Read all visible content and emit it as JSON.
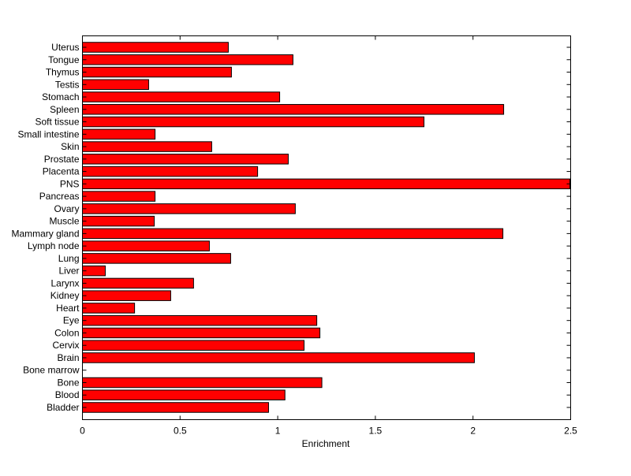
{
  "chart_data": {
    "type": "bar",
    "orientation": "horizontal",
    "title": "",
    "xlabel": "Enrichment",
    "ylabel": "",
    "xlim": [
      0,
      2.5
    ],
    "xticks": [
      "0",
      "0.5",
      "1",
      "1.5",
      "2",
      "2.5"
    ],
    "grid": false,
    "bar_color": "#ff0000",
    "categories": [
      "Bladder",
      "Blood",
      "Bone",
      "Bone marrow",
      "Brain",
      "Cervix",
      "Colon",
      "Eye",
      "Heart",
      "Kidney",
      "Larynx",
      "Liver",
      "Lung",
      "Lymph node",
      "Mammary gland",
      "Muscle",
      "Ovary",
      "Pancreas",
      "PNS",
      "Placenta",
      "Prostate",
      "Skin",
      "Small intestine",
      "Soft tissue",
      "Spleen",
      "Stomach",
      "Testis",
      "Thymus",
      "Tongue",
      "Uterus"
    ],
    "values": [
      0.953,
      1.037,
      1.226,
      0,
      2.007,
      1.135,
      1.216,
      1.2,
      0.267,
      0.452,
      0.569,
      0.117,
      0.759,
      0.65,
      2.153,
      0.368,
      1.09,
      0.372,
      2.496,
      0.897,
      1.054,
      0.662,
      0.372,
      1.749,
      2.157,
      1.01,
      0.339,
      0.763,
      1.078,
      0.747
    ]
  }
}
